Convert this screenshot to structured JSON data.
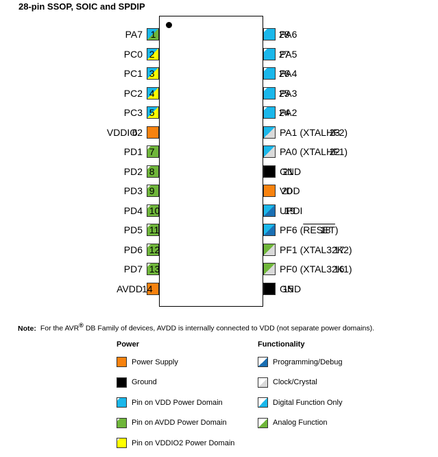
{
  "title": "28-pin SSOP, SOIC and SPDIP",
  "colors": {
    "vdd": "#1ab7ea",
    "avdd": "#6fb63a",
    "vddio2": "#ffff00",
    "power": "#f7820f",
    "ground": "#000000",
    "prog": "#1a6fb3",
    "clock": "#ffffff",
    "clock_fill": "#d9d9d9"
  },
  "left_pins": [
    {
      "num": "1",
      "name": "PA7",
      "style": "vdd-analog"
    },
    {
      "num": "2",
      "name": "PC0",
      "style": "vddio2"
    },
    {
      "num": "3",
      "name": "PC1",
      "style": "vddio2"
    },
    {
      "num": "4",
      "name": "PC2",
      "style": "vddio2"
    },
    {
      "num": "5",
      "name": "PC3",
      "style": "vddio2"
    },
    {
      "num": "6",
      "name": "VDDIO2",
      "style": "power"
    },
    {
      "num": "7",
      "name": "PD1",
      "style": "avdd"
    },
    {
      "num": "8",
      "name": "PD2",
      "style": "avdd"
    },
    {
      "num": "9",
      "name": "PD3",
      "style": "avdd"
    },
    {
      "num": "10",
      "name": "PD4",
      "style": "avdd"
    },
    {
      "num": "11",
      "name": "PD5",
      "style": "avdd"
    },
    {
      "num": "12",
      "name": "PD6",
      "style": "avdd"
    },
    {
      "num": "13",
      "name": "PD7",
      "style": "avdd"
    },
    {
      "num": "14",
      "name": "AVDD",
      "style": "power"
    }
  ],
  "right_pins": [
    {
      "num": "28",
      "name": "PA6",
      "style": "vdd-digital"
    },
    {
      "num": "27",
      "name": "PA5",
      "style": "vdd-digital"
    },
    {
      "num": "26",
      "name": "PA4",
      "style": "vdd-digital"
    },
    {
      "num": "25",
      "name": "PA3",
      "style": "vdd-digital"
    },
    {
      "num": "24",
      "name": "PA2",
      "style": "vdd-digital"
    },
    {
      "num": "23",
      "name": "PA1 (XTALHF2)",
      "style": "clock"
    },
    {
      "num": "22",
      "name": "PA0 (XTALHF1)",
      "style": "clock"
    },
    {
      "num": "21",
      "name": "GND",
      "style": "ground"
    },
    {
      "num": "20",
      "name": "VDD",
      "style": "power"
    },
    {
      "num": "19",
      "name": "UPDI",
      "style": "prog"
    },
    {
      "num": "18",
      "name": "PF6 (",
      "name_over": "RESET",
      "name_after": ")",
      "style": "prog"
    },
    {
      "num": "17",
      "name": "PF1 (XTAL32K2)",
      "style": "vdd-clock-analog"
    },
    {
      "num": "16",
      "name": "PF0 (XTAL32K1)",
      "style": "vdd-clock-analog"
    },
    {
      "num": "15",
      "name": "GND",
      "style": "ground"
    }
  ],
  "note": {
    "label": "Note:",
    "text_before": "For the AVR",
    "sup": "®",
    "text_after": " DB Family of devices, AVDD is internally connected to VDD (not separate power domains)."
  },
  "legend": {
    "power_title": "Power",
    "functionality_title": "Functionality",
    "power_items": [
      {
        "label": "Power Supply",
        "style": "power"
      },
      {
        "label": "Ground",
        "style": "ground"
      },
      {
        "label": "Pin on VDD Power Domain",
        "style": "legend-vdd"
      },
      {
        "label": "Pin on AVDD Power Domain",
        "style": "legend-avdd"
      },
      {
        "label": "Pin on VDDIO2 Power Domain",
        "style": "legend-vddio2"
      }
    ],
    "functionality_items": [
      {
        "label": "Programming/Debug",
        "style": "legend-prog"
      },
      {
        "label": "Clock/Crystal",
        "style": "legend-clock"
      },
      {
        "label": "Digital Function Only",
        "style": "legend-digital"
      },
      {
        "label": "Analog Function",
        "style": "legend-analog"
      }
    ]
  }
}
